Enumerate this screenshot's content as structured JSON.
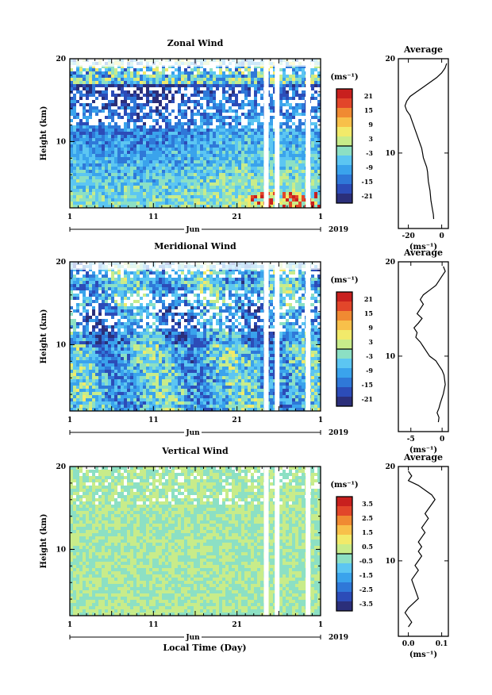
{
  "figure": {
    "x_axis_title": "Local Time (Day)"
  },
  "chart_data": [
    {
      "type": "heatmap",
      "title": "Zonal Wind",
      "ylabel": "Height (km)",
      "ylim": [
        2,
        20
      ],
      "yticks": [
        "10",
        "20"
      ],
      "xticks": [
        "1",
        "11",
        "21",
        "1"
      ],
      "month_label": "Jun",
      "year_label": "2019",
      "colorbar_unit": "(ms⁻¹)",
      "colorbar_ticks": [
        "21",
        "15",
        "9",
        "3",
        "-3",
        "-9",
        "-15",
        "-21"
      ],
      "colorbar_colors": [
        "#2b2f7a",
        "#2c4cb8",
        "#2f78d8",
        "#3aa3ec",
        "#5cc6f2",
        "#8ce0c4",
        "#c8ec8a",
        "#f2ea6a",
        "#f8c04a",
        "#f08a32",
        "#e2462a",
        "#c8201e"
      ],
      "gaps_day": [
        24.5,
        25.8,
        29.5
      ]
    },
    {
      "type": "line",
      "title": "Average",
      "xticks": [
        "-20",
        "0"
      ],
      "xlim": [
        -26,
        4
      ],
      "ylim": [
        2,
        20
      ],
      "yticks": [
        "10",
        "20"
      ],
      "xunit": "(ms⁻¹)",
      "x": [
        3,
        2,
        0,
        -3,
        -7,
        -11,
        -15,
        -19,
        -21,
        -22,
        -21,
        -19,
        -18,
        -17,
        -16,
        -15,
        -14,
        -13,
        -12,
        -11.5,
        -11,
        -10,
        -9,
        -8.5,
        -8,
        -7,
        -6.5,
        -6,
        -5.5,
        -5,
        -4.8
      ],
      "y": [
        19.5,
        19,
        18.5,
        18,
        17.5,
        17,
        16.5,
        16,
        15.5,
        15,
        14.5,
        14,
        13.5,
        13,
        12.5,
        12,
        11.5,
        11,
        10.5,
        10,
        9.5,
        9,
        8.5,
        8,
        7,
        6,
        5,
        4.5,
        4,
        3.5,
        3
      ]
    },
    {
      "type": "heatmap",
      "title": "Meridional Wind",
      "ylabel": "Height (km)",
      "ylim": [
        2,
        20
      ],
      "yticks": [
        "10",
        "20"
      ],
      "xticks": [
        "1",
        "11",
        "21",
        "1"
      ],
      "month_label": "Jun",
      "year_label": "2019",
      "colorbar_unit": "(ms⁻¹)",
      "colorbar_ticks": [
        "21",
        "15",
        "9",
        "3",
        "-3",
        "-9",
        "-15",
        "-21"
      ],
      "colorbar_colors": [
        "#2b2f7a",
        "#2c4cb8",
        "#2f78d8",
        "#3aa3ec",
        "#5cc6f2",
        "#8ce0c4",
        "#c8ec8a",
        "#f2ea6a",
        "#f8c04a",
        "#f08a32",
        "#e2462a",
        "#c8201e"
      ],
      "gaps_day": [
        24.5,
        25.8,
        29.5
      ]
    },
    {
      "type": "line",
      "title": "Average",
      "xticks": [
        "-5",
        "0"
      ],
      "xlim": [
        -7,
        1
      ],
      "ylim": [
        2,
        20
      ],
      "yticks": [
        "10",
        "20"
      ],
      "xunit": "(ms⁻¹)",
      "x": [
        0.2,
        0.5,
        0,
        -0.5,
        -1,
        -2,
        -3,
        -3.5,
        -3,
        -3.5,
        -4,
        -3.2,
        -3.8,
        -4.5,
        -4,
        -4.2,
        -3.5,
        -3,
        -2.5,
        -2,
        -1,
        -0.5,
        0,
        0.3,
        0.5,
        0.2,
        -0.3,
        -0.5,
        -0.8,
        -0.5,
        -0.6
      ],
      "y": [
        19.5,
        19,
        18.5,
        18,
        17.5,
        17,
        16.5,
        16,
        15.5,
        15,
        14.5,
        14,
        13.5,
        13,
        12.5,
        12,
        11.5,
        11,
        10.5,
        10,
        9.5,
        9,
        8.5,
        8,
        7,
        6,
        5,
        4.5,
        4,
        3.5,
        3
      ]
    },
    {
      "type": "heatmap",
      "title": "Vertical Wind",
      "ylabel": "Height (km)",
      "ylim": [
        2,
        20
      ],
      "yticks": [
        "10",
        "20"
      ],
      "xticks": [
        "1",
        "11",
        "21",
        "1"
      ],
      "month_label": "Jun",
      "year_label": "2019",
      "colorbar_unit": "(ms⁻¹)",
      "colorbar_ticks": [
        "3.5",
        "2.5",
        "1.5",
        "0.5",
        "-0.5",
        "-1.5",
        "-2.5",
        "-3.5"
      ],
      "colorbar_colors": [
        "#2b2f7a",
        "#2c4cb8",
        "#2f78d8",
        "#3aa3ec",
        "#5cc6f2",
        "#8ce0c4",
        "#c8ec8a",
        "#f2ea6a",
        "#f8c04a",
        "#f08a32",
        "#e2462a",
        "#c8201e"
      ],
      "gaps_day": [
        24.5,
        25.8,
        29.5
      ]
    },
    {
      "type": "line",
      "title": "Average",
      "xticks": [
        "0.0",
        "0.1"
      ],
      "xlim": [
        -0.03,
        0.12
      ],
      "ylim": [
        2,
        20
      ],
      "yticks": [
        "10",
        "20"
      ],
      "xunit": "(ms⁻¹)",
      "x": [
        0.0,
        0.01,
        0.0,
        0.03,
        0.05,
        0.07,
        0.08,
        0.07,
        0.06,
        0.05,
        0.06,
        0.05,
        0.04,
        0.05,
        0.04,
        0.03,
        0.04,
        0.03,
        0.04,
        0.03,
        0.02,
        0.03,
        0.02,
        0.01,
        0.02,
        0.03,
        0.0,
        -0.01,
        0.0,
        0.01,
        0.0
      ],
      "y": [
        19.5,
        19,
        18.5,
        18,
        17.5,
        17,
        16.5,
        16,
        15.5,
        15,
        14.5,
        14,
        13.5,
        13,
        12.5,
        12,
        11.5,
        11,
        10.5,
        10,
        9.5,
        9,
        8.5,
        8,
        7,
        6,
        5,
        4.5,
        4,
        3.5,
        3
      ]
    }
  ]
}
